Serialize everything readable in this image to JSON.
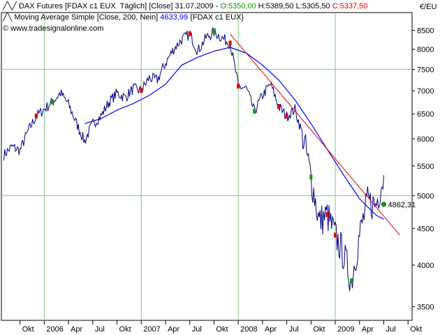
{
  "header": {
    "line1": {
      "series": "DAX Futures [FDAX c1 EUX  Täglich] [Close]",
      "date": "31.07.2009",
      "open": "O:5350,00",
      "high": "H:5389,50",
      "low": "L:5305,50",
      "close": "C:5337,50"
    },
    "line2": {
      "indicator": "Moving Average Simple [Close, 200, Nein]",
      "value": "4633,99",
      "symbol": "{FDAX c1 EUX}"
    },
    "line3": {
      "copyright": "© www.tradesignalonline.com"
    }
  },
  "colors": {
    "price": "#000080",
    "ma": "#0000ff",
    "trendline": "#e00000",
    "grid": "#7fc97f",
    "open": "#00a000",
    "close": "#e00000",
    "ma_value": "#0000ff"
  },
  "chart_data": {
    "type": "line",
    "title": "DAX Futures [FDAX c1 EUX  Täglich] [Close]",
    "ylabel": "€/EU",
    "y_scale": "log",
    "ylim": [
      3350,
      9000
    ],
    "y_ticks": [
      8500,
      8000,
      7500,
      7000,
      6500,
      6000,
      5500,
      5000,
      4500,
      4000,
      3500
    ],
    "x_ticks": [
      "Okt",
      "2006",
      "Apr",
      "Jul",
      "Okt",
      "2007",
      "Apr",
      "Jul",
      "Okt",
      "2008",
      "Apr",
      "Jul",
      "Okt",
      "2009",
      "Apr",
      "Jul",
      "Okt"
    ],
    "x_tick_dates": [
      "2005-10",
      "2006-01",
      "2006-04",
      "2006-07",
      "2006-10",
      "2007-01",
      "2007-04",
      "2007-07",
      "2007-10",
      "2008-01",
      "2008-04",
      "2008-07",
      "2008-10",
      "2009-01",
      "2009-04",
      "2009-07",
      "2009-10"
    ],
    "grid": true,
    "series": [
      {
        "name": "DAX Futures [FDAX c1 EUX  Täglich] [Close]",
        "points": [
          [
            "2005-08",
            5700
          ],
          [
            "2005-09",
            5850
          ],
          [
            "2005-10",
            5780
          ],
          [
            "2005-11",
            6150
          ],
          [
            "2005-12",
            6450
          ],
          [
            "2006-01",
            6600
          ],
          [
            "2006-02",
            6750
          ],
          [
            "2006-03",
            6950
          ],
          [
            "2006-04",
            6700
          ],
          [
            "2006-05",
            6300
          ],
          [
            "2006-06",
            5950
          ],
          [
            "2006-07",
            6300
          ],
          [
            "2006-08",
            6450
          ],
          [
            "2006-09",
            6750
          ],
          [
            "2006-10",
            6950
          ],
          [
            "2006-11",
            6850
          ],
          [
            "2006-12",
            7050
          ],
          [
            "2007-01",
            7000
          ],
          [
            "2007-02",
            7300
          ],
          [
            "2007-03",
            7250
          ],
          [
            "2007-04",
            7650
          ],
          [
            "2007-05",
            8000
          ],
          [
            "2007-06",
            8250
          ],
          [
            "2007-07",
            8400
          ],
          [
            "2007-08",
            7950
          ],
          [
            "2007-09",
            8300
          ],
          [
            "2007-10",
            8450
          ],
          [
            "2007-11",
            8300
          ],
          [
            "2007-12",
            8150
          ],
          [
            "2008-01",
            7100
          ],
          [
            "2008-02",
            7050
          ],
          [
            "2008-03",
            6550
          ],
          [
            "2008-04",
            6900
          ],
          [
            "2008-05",
            7150
          ],
          [
            "2008-06",
            6650
          ],
          [
            "2008-07",
            6450
          ],
          [
            "2008-08",
            6600
          ],
          [
            "2008-09",
            6050
          ],
          [
            "2008-10",
            5300
          ],
          [
            "2008-11",
            4600
          ],
          [
            "2008-12",
            4700
          ],
          [
            "2009-01",
            4400
          ],
          [
            "2009-02",
            4150
          ],
          [
            "2009-03",
            3800
          ],
          [
            "2009-04",
            4400
          ],
          [
            "2009-05",
            4900
          ],
          [
            "2009-06",
            4850
          ],
          [
            "2009-07",
            5337.5
          ]
        ]
      },
      {
        "name": "Moving Average Simple [Close, 200, Nein]",
        "points": [
          [
            "2006-06",
            6300
          ],
          [
            "2006-08",
            6400
          ],
          [
            "2006-10",
            6580
          ],
          [
            "2006-12",
            6720
          ],
          [
            "2007-02",
            6900
          ],
          [
            "2007-04",
            7150
          ],
          [
            "2007-06",
            7600
          ],
          [
            "2007-08",
            7800
          ],
          [
            "2007-10",
            7950
          ],
          [
            "2007-12",
            8050
          ],
          [
            "2008-02",
            7900
          ],
          [
            "2008-04",
            7600
          ],
          [
            "2008-06",
            7250
          ],
          [
            "2008-08",
            6800
          ],
          [
            "2008-10",
            6300
          ],
          [
            "2008-12",
            5800
          ],
          [
            "2009-02",
            5350
          ],
          [
            "2009-04",
            4950
          ],
          [
            "2009-06",
            4700
          ],
          [
            "2009-07",
            4633.99
          ]
        ]
      },
      {
        "name": "trendline",
        "points": [
          [
            "2007-12",
            8400
          ],
          [
            "2009-09",
            4400
          ]
        ]
      }
    ],
    "annotations": [
      {
        "text": "4862,31",
        "x": "2009-07",
        "y": 4862.31
      }
    ]
  }
}
